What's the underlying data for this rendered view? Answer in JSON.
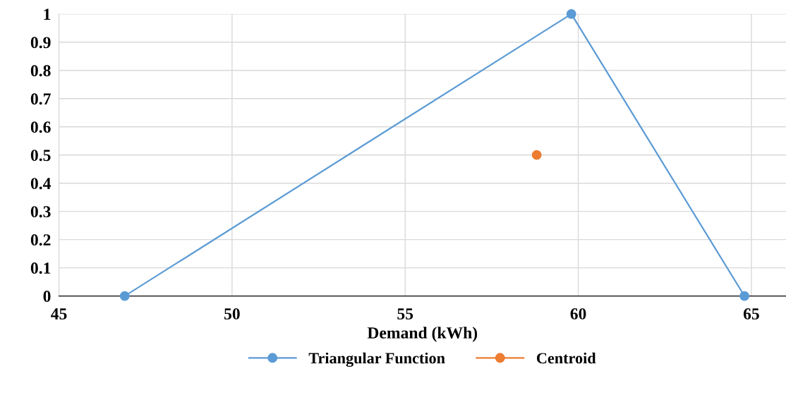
{
  "chart_data": {
    "type": "line",
    "xlabel": "Demand (kWh)",
    "xlim": [
      45,
      66
    ],
    "xticks": [
      45,
      50,
      55,
      60,
      65
    ],
    "ylim": [
      0,
      1
    ],
    "yticks": [
      0,
      0.1,
      0.2,
      0.3,
      0.4,
      0.5,
      0.6,
      0.7,
      0.8,
      0.9,
      1
    ],
    "series": [
      {
        "name": "Triangular Function",
        "color": "#5b9bd5",
        "x": [
          46.9,
          59.8,
          64.8
        ],
        "values": [
          0,
          1,
          0
        ]
      },
      {
        "name": "Centroid",
        "type": "scatter",
        "color": "#ed7d31",
        "x": [
          58.8
        ],
        "values": [
          0.5
        ]
      }
    ],
    "grid": true,
    "legend": "bottom",
    "marker": "circle",
    "line_style": "solid"
  }
}
